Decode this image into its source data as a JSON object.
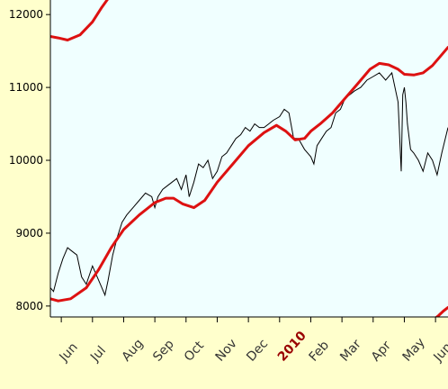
{
  "chart_data": {
    "type": "line",
    "title": "",
    "xlabel": "",
    "ylabel": "",
    "ylim": [
      7850,
      12200
    ],
    "yticks": [
      8000,
      9000,
      10000,
      11000,
      12000
    ],
    "xticks": [
      {
        "label": "Jun",
        "major": false
      },
      {
        "label": "Jul",
        "major": false
      },
      {
        "label": "Aug",
        "major": false
      },
      {
        "label": "Sep",
        "major": false
      },
      {
        "label": "Oct",
        "major": false
      },
      {
        "label": "Nov",
        "major": false
      },
      {
        "label": "Dec",
        "major": false
      },
      {
        "label": "2010",
        "major": true
      },
      {
        "label": "Feb",
        "major": false
      },
      {
        "label": "Mar",
        "major": false
      },
      {
        "label": "Apr",
        "major": false
      },
      {
        "label": "May",
        "major": false
      },
      {
        "label": "Jun",
        "major": false
      }
    ],
    "x_range_months": [
      -0.35,
      12.4
    ],
    "grid": false,
    "colors": {
      "plot_background": "#f0ffff",
      "page_background": "#ffffcc",
      "price_line": "#000000",
      "band": "#dd1111"
    },
    "series": [
      {
        "style": "price",
        "x": [
          -0.35,
          -0.25,
          -0.1,
          0.05,
          0.2,
          0.35,
          0.5,
          0.65,
          0.8,
          1.0,
          1.1,
          1.25,
          1.4,
          1.5,
          1.65,
          1.8,
          1.95,
          2.1,
          2.3,
          2.5,
          2.7,
          2.9,
          3.0,
          3.1,
          3.25,
          3.4,
          3.55,
          3.7,
          3.85,
          4.0,
          4.1,
          4.25,
          4.4,
          4.55,
          4.7,
          4.85,
          5.0,
          5.15,
          5.3,
          5.45,
          5.6,
          5.75,
          5.9,
          6.05,
          6.2,
          6.35,
          6.5,
          6.65,
          6.8,
          7.0,
          7.15,
          7.3,
          7.45,
          7.6,
          7.8,
          8.0,
          8.1,
          8.2,
          8.35,
          8.5,
          8.65,
          8.8,
          8.95,
          9.1,
          9.25,
          9.4,
          9.6,
          9.8,
          10.0,
          10.2,
          10.4,
          10.6,
          10.8,
          10.9,
          10.95,
          11.0,
          11.05,
          11.1,
          11.2,
          11.3,
          11.45,
          11.6,
          11.75,
          11.9,
          12.05,
          12.2,
          12.4
        ],
        "y": [
          8250,
          8200,
          8450,
          8650,
          8800,
          8750,
          8700,
          8400,
          8300,
          8550,
          8450,
          8300,
          8150,
          8350,
          8700,
          8950,
          9150,
          9250,
          9350,
          9450,
          9550,
          9500,
          9350,
          9500,
          9600,
          9650,
          9700,
          9750,
          9600,
          9800,
          9500,
          9700,
          9950,
          9900,
          10000,
          9750,
          9850,
          10050,
          10100,
          10200,
          10300,
          10350,
          10450,
          10400,
          10500,
          10450,
          10450,
          10500,
          10550,
          10600,
          10700,
          10650,
          10300,
          10300,
          10150,
          10050,
          9950,
          10200,
          10300,
          10400,
          10450,
          10650,
          10700,
          10850,
          10900,
          10950,
          11000,
          11100,
          11150,
          11200,
          11100,
          11200,
          10800,
          9850,
          10900,
          11000,
          10800,
          10500,
          10150,
          10100,
          10000,
          9850,
          10100,
          10000,
          9800,
          10100,
          10450
        ]
      },
      {
        "style": "band",
        "x": [
          -0.35,
          -0.1,
          0.3,
          0.8,
          1.2,
          1.6,
          2.0,
          2.5,
          3.0,
          3.35,
          3.6,
          3.9,
          4.25,
          4.6,
          5.0,
          5.5,
          6.0,
          6.5,
          6.9,
          7.2,
          7.5,
          7.8,
          8.0,
          8.3,
          8.7,
          9.1,
          9.5,
          9.9,
          10.2,
          10.5,
          10.8,
          11.0,
          11.3,
          11.6,
          11.9,
          12.2,
          12.4
        ],
        "y": [
          8100,
          8070,
          8100,
          8250,
          8500,
          8800,
          9050,
          9250,
          9420,
          9480,
          9480,
          9400,
          9350,
          9450,
          9700,
          9950,
          10200,
          10380,
          10480,
          10400,
          10280,
          10300,
          10400,
          10500,
          10650,
          10850,
          11050,
          11250,
          11330,
          11310,
          11250,
          11180,
          11170,
          11200,
          11300,
          11450,
          11550
        ]
      },
      {
        "style": "band",
        "x": [
          -0.35,
          -0.1,
          0.2,
          0.6,
          1.0,
          1.3,
          1.55
        ],
        "y": [
          11700,
          11680,
          11650,
          11720,
          11900,
          12100,
          12250
        ]
      },
      {
        "style": "band",
        "x": [
          11.9,
          12.1,
          12.25,
          12.4
        ],
        "y": [
          7800,
          7870,
          7930,
          7980
        ]
      }
    ]
  }
}
